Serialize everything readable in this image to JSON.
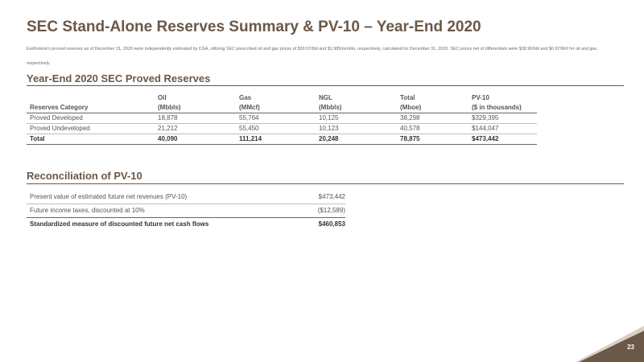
{
  "title": "SEC Stand-Alone Reserves Summary & PV-10 – Year-End 2020",
  "subtitle": "Earthstone's proved reserves as of December 31, 2020 were independently estimated by CGA, utilizing SEC prescribed oil and gas prices of $39.57/bbl and $1.985/mmbtu, respectively, calculated for December 31, 2020. SEC prices net of differentials were $38.90/bbl and $0.97/Mcf for oil and gas, respectively.",
  "reserves": {
    "heading": "Year-End 2020 SEC Proved Reserves",
    "headers": [
      {
        "line1": "",
        "line2": "Reserves Category"
      },
      {
        "line1": "Oil",
        "line2": "(Mbbls)"
      },
      {
        "line1": "Gas",
        "line2": "(MMcf)"
      },
      {
        "line1": "NGL",
        "line2": "(Mbbls)"
      },
      {
        "line1": "Total",
        "line2": "(Mboe)"
      },
      {
        "line1": "PV-10",
        "line2": "($ in thousands)"
      }
    ],
    "rows": [
      [
        "Proved Developed",
        "18,878",
        "55,764",
        "10,125",
        "38,298",
        "$329,395"
      ],
      [
        "Proved Undeveloped",
        "21,212",
        "55,450",
        "10,123",
        "40,578",
        "$144,047"
      ],
      [
        "Total",
        "40,090",
        "111,214",
        "20,248",
        "78,875",
        "$473,442"
      ]
    ]
  },
  "reconciliation": {
    "heading": "Reconciliation of PV-10",
    "rows": [
      {
        "label": "Present value of estimated future net revenues (PV-10)",
        "value": "$473,442"
      },
      {
        "label": "Future income taxes, discounted at 10%",
        "value": "($12,589)"
      },
      {
        "label": "Standardized measure of discounted future net cash flows",
        "value": "$460,853"
      }
    ]
  },
  "page_number": "23",
  "colors": {
    "accent": "#6b5847"
  }
}
